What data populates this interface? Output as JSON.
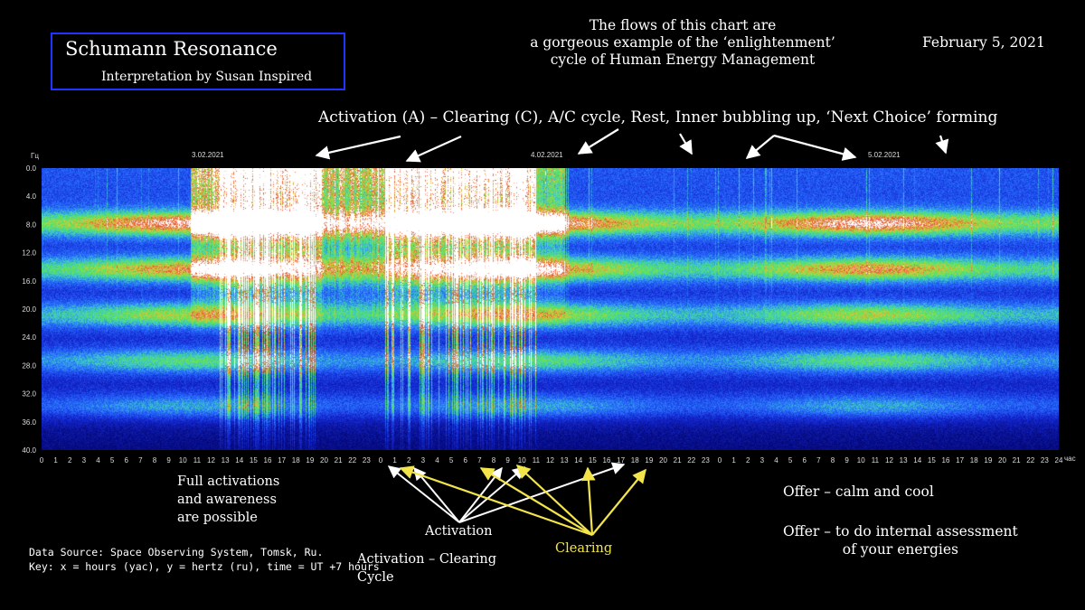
{
  "header": {
    "title": "Schumann Resonance",
    "subtitle": "Interpretation by Susan Inspired",
    "note_lines": [
      "The flows of this chart are",
      "a gorgeous example of the ‘enlightenment’",
      "cycle of Human Energy Management"
    ],
    "date": "February 5, 2021"
  },
  "banner": "Activation (A) – Clearing (C),  A/C cycle, Rest, Inner bubbling up, ‘Next Choice’ forming",
  "chart_data": {
    "type": "heatmap",
    "ylabel": "Гц",
    "xlabel": "час",
    "ylim": [
      0,
      40
    ],
    "y_ticks": [
      "0.0",
      "4.0",
      "8.0",
      "12.0",
      "16.0",
      "20.0",
      "24.0",
      "28.0",
      "32.0",
      "36.0",
      "40.0"
    ],
    "x_ticks": [
      "0",
      "1",
      "2",
      "3",
      "4",
      "5",
      "6",
      "7",
      "8",
      "9",
      "10",
      "11",
      "12",
      "13",
      "14",
      "15",
      "16",
      "17",
      "18",
      "19",
      "20",
      "21",
      "22",
      "23",
      "0",
      "1",
      "2",
      "3",
      "4",
      "5",
      "6",
      "7",
      "8",
      "9",
      "10",
      "11",
      "12",
      "13",
      "14",
      "15",
      "16",
      "17",
      "18",
      "19",
      "20",
      "21",
      "22",
      "23",
      "0",
      "1",
      "2",
      "3",
      "4",
      "5",
      "6",
      "7",
      "8",
      "9",
      "10",
      "11",
      "12",
      "13",
      "14",
      "15",
      "16",
      "17",
      "18",
      "19",
      "20",
      "21",
      "22",
      "23",
      "24"
    ],
    "date_labels": [
      "3.02.2021",
      "4.02.2021",
      "5.02.2021"
    ],
    "resonance_bands_hz": [
      7.8,
      14.3,
      20.8,
      27.3,
      33.8
    ],
    "bursts": [
      {
        "start_hour": 12.5,
        "end_hour": 19.8,
        "intensity": 1.0
      },
      {
        "start_hour": 24.3,
        "end_hour": 35.0,
        "intensity": 0.95
      },
      {
        "start_hour": 10.5,
        "end_hour": 12.5,
        "intensity": 0.6
      },
      {
        "start_hour": 19.8,
        "end_hour": 24.3,
        "intensity": 0.55
      },
      {
        "start_hour": 35.0,
        "end_hour": 37.0,
        "intensity": 0.4
      }
    ],
    "colors": {
      "low": "#0a10a0",
      "mid": "#2f6cff",
      "band": "#57e061",
      "high": "#e05a2a",
      "peak": "#ffffff"
    }
  },
  "annotations": {
    "full_activations": [
      "Full activations",
      "and awareness",
      "are possible"
    ],
    "activation": "Activation",
    "clearing": "Clearing",
    "ac_cycle": [
      "Activation – Clearing",
      "Cycle"
    ],
    "offer1": "Offer – calm and cool",
    "offer2_lines": [
      "Offer – to do internal assessment",
      "of your energies"
    ],
    "source_lines": [
      "Data Source: Space Observing System, Tomsk, Ru.",
      "Key: x = hours (yac), y = hertz (ru), time = UT +7 hours"
    ]
  }
}
